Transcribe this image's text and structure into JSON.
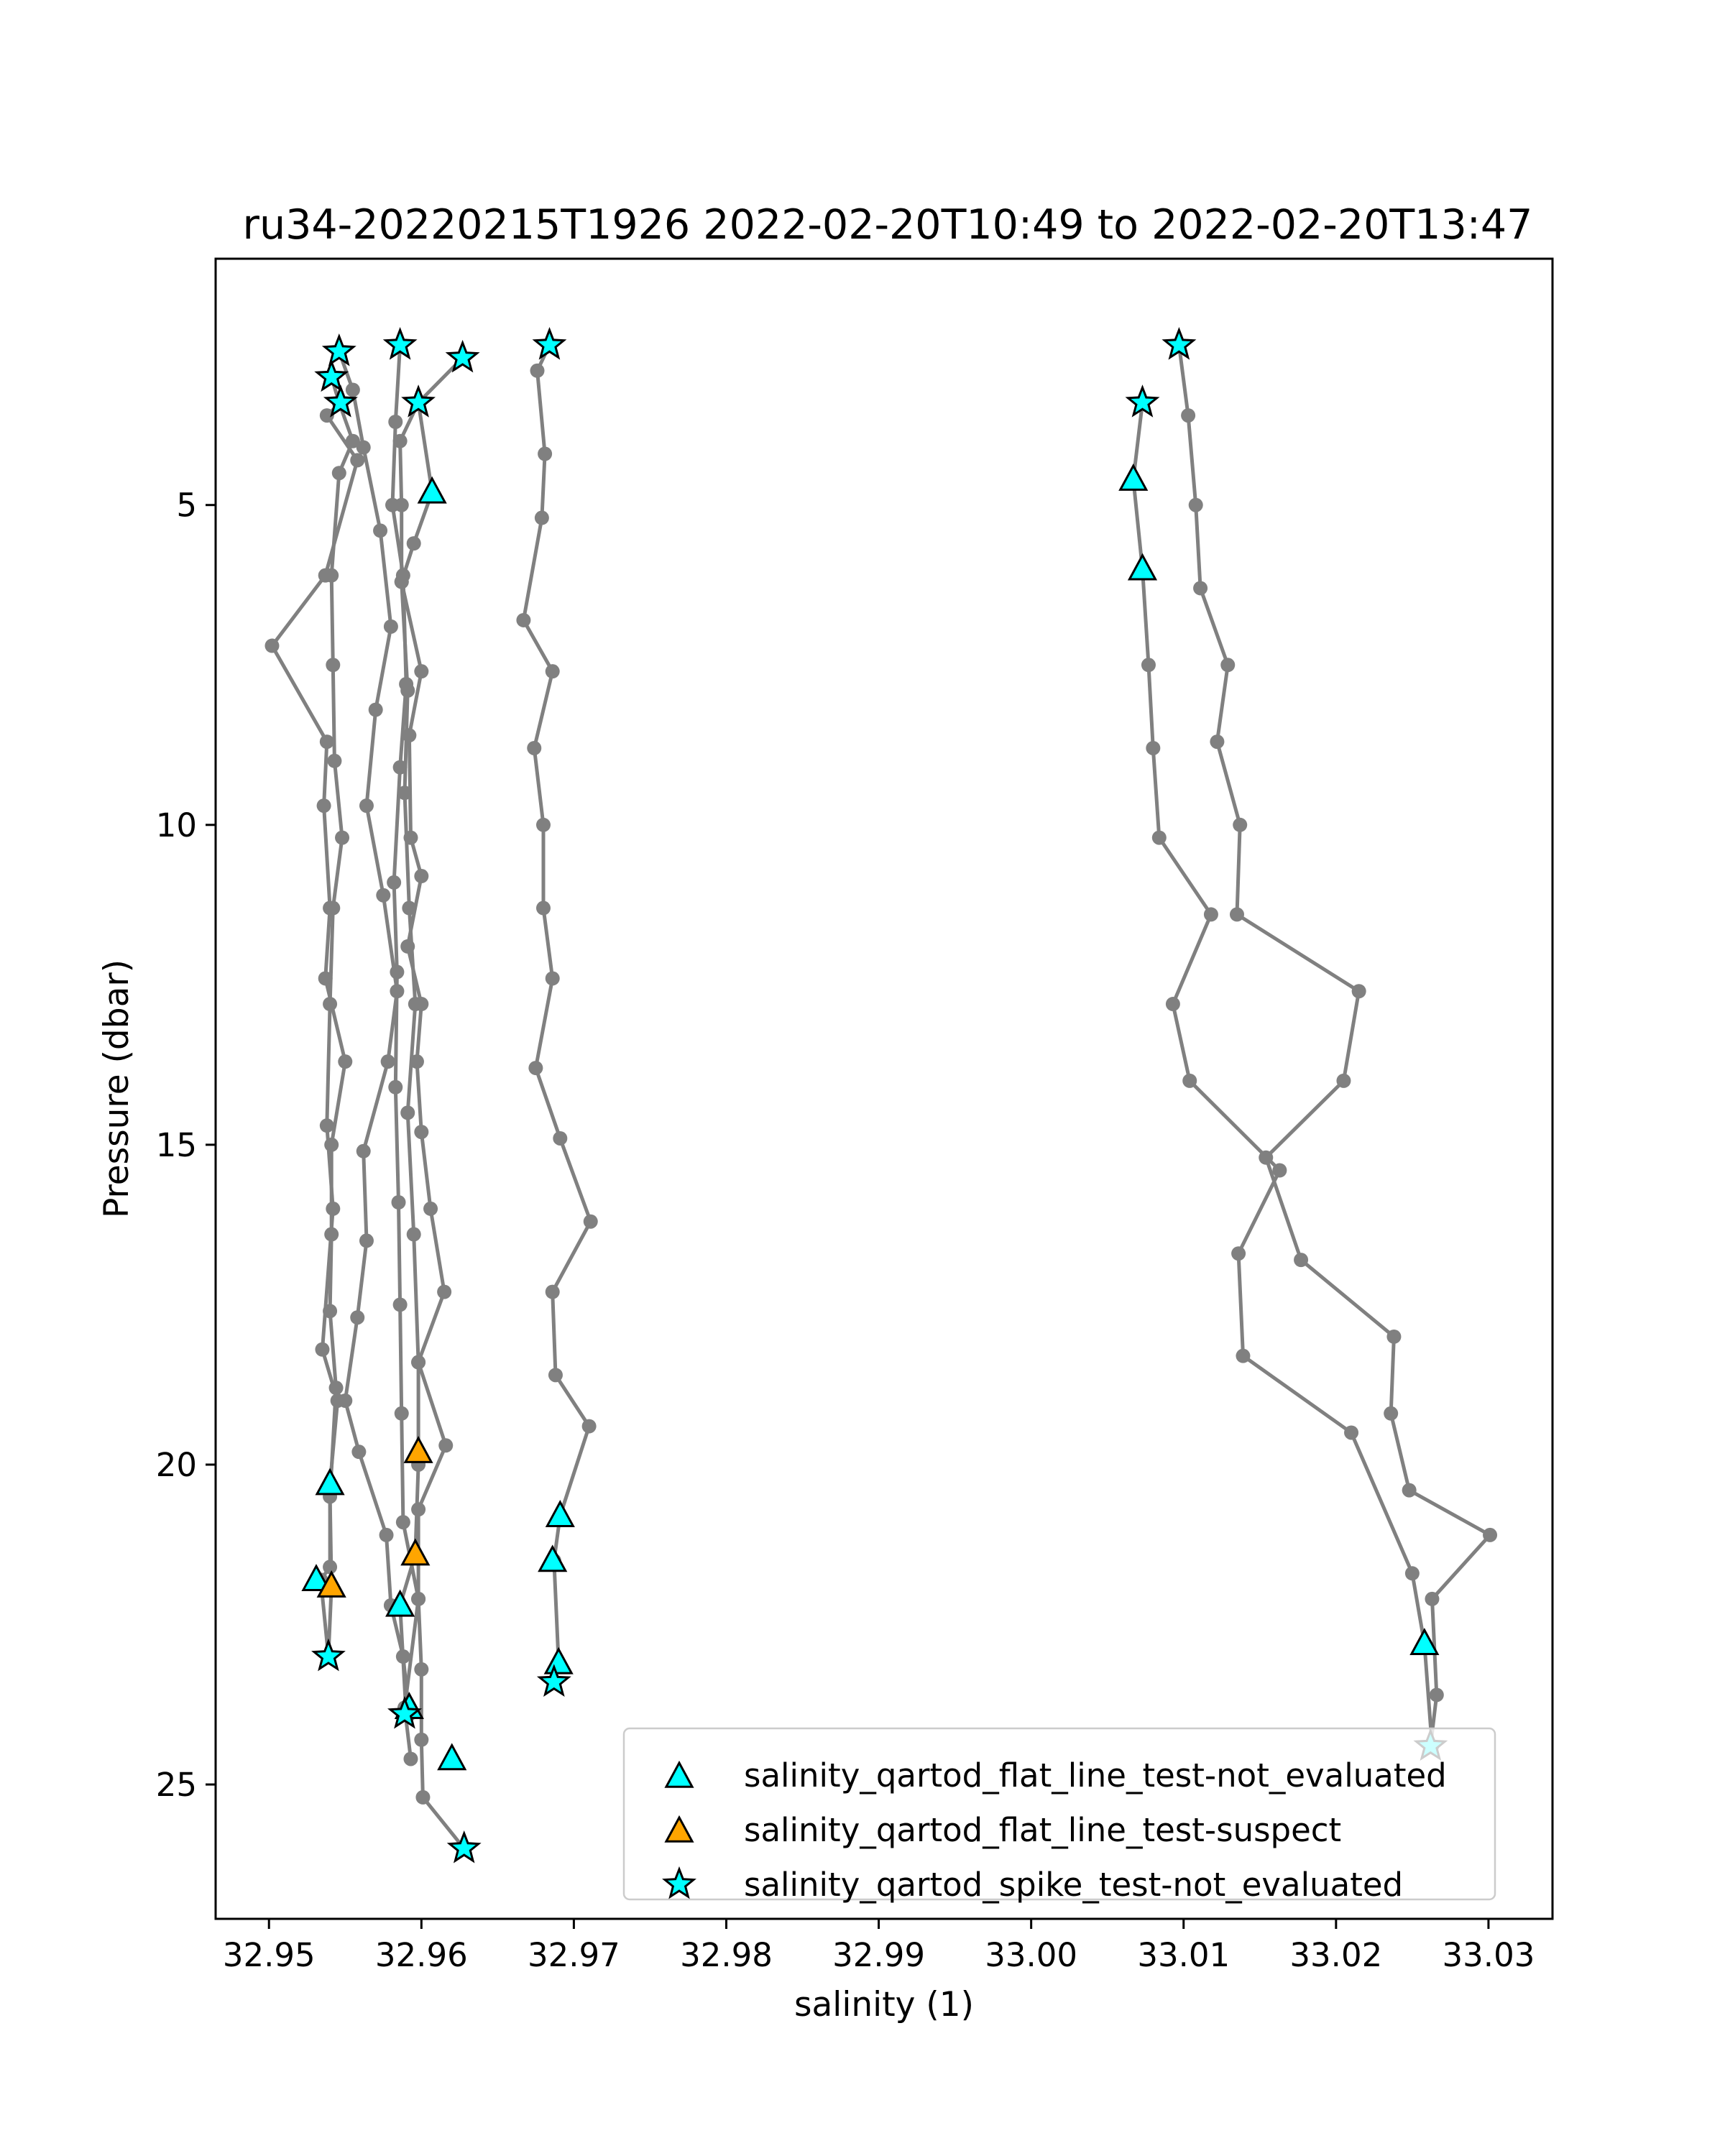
{
  "chart_data": {
    "type": "scatter",
    "title": "ru34-20220215T1926 2022-02-20T10:49 to 2022-02-20T13:47",
    "xlabel": "salinity (1)",
    "ylabel": "Pressure (dbar)",
    "xlim": [
      32.9465,
      33.0342
    ],
    "ylim": [
      27.1,
      1.15
    ],
    "y_inverted": true,
    "xticks": [
      32.95,
      32.96,
      32.97,
      32.98,
      32.99,
      33.0,
      33.01,
      33.02,
      33.03
    ],
    "xtick_labels": [
      "32.95",
      "32.96",
      "32.97",
      "32.98",
      "32.99",
      "33.00",
      "33.01",
      "33.02",
      "33.03"
    ],
    "yticks": [
      5,
      10,
      15,
      20,
      25
    ],
    "ytick_labels": [
      "5",
      "10",
      "15",
      "20",
      "25"
    ],
    "grid": false,
    "legend_position": "lower-right",
    "colors": {
      "profile_line": "#808080",
      "not_evaluated": "#00FFFF",
      "suspect": "#FFA500",
      "marker_edge": "#000000"
    },
    "profiles": [
      {
        "points": [
          [
            32.9546,
            2.6
          ],
          [
            32.9555,
            3.2
          ],
          [
            32.9562,
            4.1
          ],
          [
            32.9573,
            5.4
          ],
          [
            32.958,
            6.9
          ],
          [
            32.957,
            8.2
          ],
          [
            32.9564,
            9.7
          ],
          [
            32.9575,
            11.1
          ],
          [
            32.9584,
            12.6
          ],
          [
            32.9578,
            13.7
          ],
          [
            32.9562,
            15.1
          ],
          [
            32.9564,
            16.5
          ],
          [
            32.9558,
            17.7
          ],
          [
            32.955,
            19.0
          ],
          [
            32.9559,
            19.8
          ],
          [
            32.9577,
            21.1
          ],
          [
            32.958,
            22.2
          ],
          [
            32.9588,
            23.0
          ],
          [
            32.9592,
            23.9
          ]
        ]
      },
      {
        "points": [
          [
            32.9586,
            2.5
          ],
          [
            32.9583,
            3.7
          ],
          [
            32.9581,
            5.0
          ],
          [
            32.9588,
            6.1
          ],
          [
            32.959,
            7.8
          ],
          [
            32.9586,
            9.1
          ],
          [
            32.9582,
            10.9
          ],
          [
            32.9584,
            12.3
          ],
          [
            32.9583,
            14.1
          ],
          [
            32.9585,
            15.9
          ],
          [
            32.9586,
            17.5
          ],
          [
            32.9587,
            19.2
          ],
          [
            32.9588,
            20.9
          ],
          [
            32.9598,
            22.1
          ],
          [
            32.9589,
            23.8
          ],
          [
            32.9593,
            24.6
          ]
        ]
      },
      {
        "points": [
          [
            32.9627,
            2.7
          ],
          [
            32.9598,
            3.4
          ],
          [
            32.9607,
            4.8
          ],
          [
            32.9595,
            5.6
          ],
          [
            32.9587,
            6.2
          ],
          [
            32.96,
            7.6
          ],
          [
            32.9592,
            8.6
          ],
          [
            32.9593,
            10.2
          ],
          [
            32.96,
            10.8
          ],
          [
            32.9591,
            11.9
          ],
          [
            32.96,
            12.8
          ],
          [
            32.9597,
            13.7
          ],
          [
            32.96,
            14.8
          ],
          [
            32.9606,
            16.0
          ],
          [
            32.9615,
            17.3
          ],
          [
            32.9598,
            18.4
          ],
          [
            32.9616,
            19.7
          ],
          [
            32.9598,
            20.7
          ],
          [
            32.9598,
            22.1
          ],
          [
            32.96,
            23.2
          ],
          [
            32.96,
            24.3
          ],
          [
            32.9601,
            25.2
          ],
          [
            32.9628,
            26.0
          ]
        ]
      },
      {
        "points": [
          [
            32.9598,
            3.4
          ],
          [
            32.9586,
            4.0
          ],
          [
            32.9587,
            5.0
          ],
          [
            32.9587,
            6.2
          ],
          [
            32.9591,
            7.9
          ],
          [
            32.9589,
            9.5
          ],
          [
            32.9592,
            11.3
          ],
          [
            32.9596,
            12.8
          ],
          [
            32.9591,
            14.5
          ],
          [
            32.9595,
            16.4
          ],
          [
            32.9598,
            18.4
          ],
          [
            32.9598,
            20.0
          ],
          [
            32.9596,
            21.4
          ],
          [
            32.9586,
            22.2
          ],
          [
            32.959,
            23.9
          ]
        ]
      },
      {
        "points": [
          [
            32.9541,
            3.0
          ],
          [
            32.9546,
            3.4
          ],
          [
            32.9555,
            4.0
          ],
          [
            32.9546,
            4.5
          ],
          [
            32.9541,
            6.1
          ],
          [
            32.9542,
            7.5
          ],
          [
            32.9543,
            9.0
          ],
          [
            32.9548,
            10.2
          ],
          [
            32.9542,
            11.3
          ],
          [
            32.954,
            12.8
          ],
          [
            32.9538,
            14.7
          ],
          [
            32.9542,
            16.0
          ],
          [
            32.9535,
            18.2
          ],
          [
            32.9545,
            19.0
          ],
          [
            32.954,
            20.3
          ],
          [
            32.954,
            21.6
          ],
          [
            32.9534,
            21.8
          ],
          [
            32.9539,
            23.0
          ]
        ]
      },
      {
        "points": [
          [
            32.9547,
            3.4
          ],
          [
            32.9538,
            3.6
          ],
          [
            32.9558,
            4.3
          ],
          [
            32.9537,
            6.1
          ],
          [
            32.9502,
            7.2
          ],
          [
            32.9538,
            8.7
          ],
          [
            32.9536,
            9.7
          ],
          [
            32.954,
            11.3
          ],
          [
            32.9537,
            12.4
          ],
          [
            32.955,
            13.7
          ],
          [
            32.9541,
            15.0
          ],
          [
            32.9541,
            16.4
          ],
          [
            32.954,
            17.6
          ],
          [
            32.9544,
            18.8
          ],
          [
            32.954,
            20.5
          ],
          [
            32.9541,
            21.9
          ],
          [
            32.9539,
            23.0
          ]
        ]
      },
      {
        "points": [
          [
            32.9684,
            2.5
          ],
          [
            32.9676,
            2.9
          ],
          [
            32.9681,
            4.2
          ],
          [
            32.9679,
            5.2
          ],
          [
            32.9667,
            6.8
          ],
          [
            32.9686,
            7.6
          ],
          [
            32.9674,
            8.8
          ],
          [
            32.968,
            10.0
          ],
          [
            32.968,
            11.3
          ],
          [
            32.9686,
            12.4
          ],
          [
            32.9675,
            13.8
          ],
          [
            32.9691,
            14.9
          ],
          [
            32.9711,
            16.2
          ],
          [
            32.9686,
            17.3
          ],
          [
            32.9688,
            18.6
          ],
          [
            32.971,
            19.4
          ],
          [
            32.9691,
            20.8
          ],
          [
            32.9687,
            21.5
          ],
          [
            32.969,
            23.1
          ],
          [
            32.9687,
            23.4
          ]
        ]
      },
      {
        "points": [
          [
            33.0097,
            2.5
          ],
          [
            33.0103,
            3.6
          ],
          [
            33.0108,
            5.0
          ],
          [
            33.0111,
            6.3
          ],
          [
            33.0129,
            7.5
          ],
          [
            33.0122,
            8.7
          ],
          [
            33.0137,
            10.0
          ],
          [
            33.0135,
            11.4
          ],
          [
            33.0215,
            12.6
          ],
          [
            33.0205,
            14.0
          ],
          [
            33.0154,
            15.2
          ],
          [
            33.0177,
            16.8
          ],
          [
            33.0238,
            18.0
          ],
          [
            33.0236,
            19.2
          ],
          [
            33.0248,
            20.4
          ],
          [
            33.0301,
            21.1
          ],
          [
            33.0263,
            22.1
          ],
          [
            33.0266,
            23.6
          ],
          [
            33.0262,
            24.4
          ]
        ]
      },
      {
        "points": [
          [
            33.0073,
            3.4
          ],
          [
            33.0067,
            4.6
          ],
          [
            33.0073,
            6.0
          ],
          [
            33.0077,
            7.5
          ],
          [
            33.008,
            8.8
          ],
          [
            33.0084,
            10.2
          ],
          [
            33.0118,
            11.4
          ],
          [
            33.0093,
            12.8
          ],
          [
            33.0104,
            14.0
          ],
          [
            33.0163,
            15.4
          ],
          [
            33.0136,
            16.7
          ],
          [
            33.0139,
            18.3
          ],
          [
            33.021,
            19.5
          ],
          [
            33.025,
            21.7
          ],
          [
            33.0258,
            22.8
          ],
          [
            33.0263,
            24.4
          ]
        ]
      }
    ],
    "series": [
      {
        "name": "salinity_qartod_flat_line_test-not_evaluated",
        "marker": "triangle",
        "color": "#00FFFF",
        "points": [
          [
            32.9607,
            4.8
          ],
          [
            32.954,
            20.3
          ],
          [
            32.9531,
            21.8
          ],
          [
            32.9586,
            22.2
          ],
          [
            32.9592,
            23.8
          ],
          [
            32.962,
            24.6
          ],
          [
            32.9691,
            20.8
          ],
          [
            32.9686,
            21.5
          ],
          [
            32.969,
            23.1
          ],
          [
            33.0067,
            4.6
          ],
          [
            33.0073,
            6.0
          ],
          [
            33.0258,
            22.8
          ]
        ]
      },
      {
        "name": "salinity_qartod_flat_line_test-suspect",
        "marker": "triangle",
        "color": "#FFA500",
        "points": [
          [
            32.9598,
            19.8
          ],
          [
            32.9596,
            21.4
          ],
          [
            32.9541,
            21.9
          ]
        ]
      },
      {
        "name": "salinity_qartod_spike_test-not_evaluated",
        "marker": "star",
        "color": "#00FFFF",
        "points": [
          [
            32.9546,
            2.6
          ],
          [
            32.9586,
            2.5
          ],
          [
            32.9627,
            2.7
          ],
          [
            32.9684,
            2.5
          ],
          [
            32.9541,
            3.0
          ],
          [
            32.9598,
            3.4
          ],
          [
            32.9547,
            3.4
          ],
          [
            32.9539,
            23.0
          ],
          [
            32.9589,
            23.9
          ],
          [
            32.9628,
            26.0
          ],
          [
            32.9687,
            23.4
          ],
          [
            33.0097,
            2.5
          ],
          [
            33.0073,
            3.4
          ],
          [
            33.0262,
            24.4
          ]
        ]
      }
    ]
  }
}
